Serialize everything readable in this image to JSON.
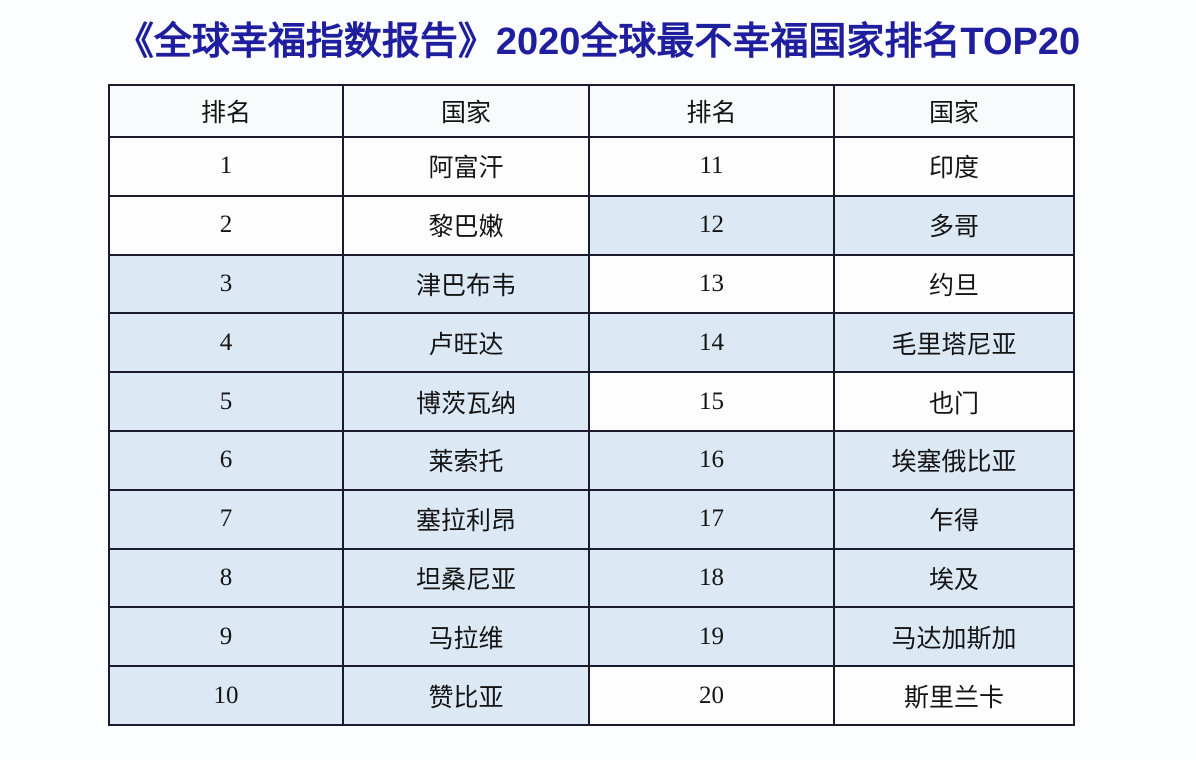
{
  "title": "《全球幸福指数报告》2020全球最不幸福国家排名TOP20",
  "colors": {
    "title_color": "#1e1e9e",
    "border_color": "#1b1b30",
    "shade_color": "#dce8f4",
    "header_bg": "#f8fafc",
    "row_bg": "#fdfdfe",
    "text_color": "#141414"
  },
  "table": {
    "headers": [
      "排名",
      "国家",
      "排名",
      "国家"
    ],
    "rows": [
      {
        "rank_left": "1",
        "country_left": "阿富汗",
        "left_shaded": false,
        "rank_right": "11",
        "country_right": "印度",
        "right_shaded": false
      },
      {
        "rank_left": "2",
        "country_left": "黎巴嫩",
        "left_shaded": false,
        "rank_right": "12",
        "country_right": "多哥",
        "right_shaded": true
      },
      {
        "rank_left": "3",
        "country_left": "津巴布韦",
        "left_shaded": true,
        "rank_right": "13",
        "country_right": "约旦",
        "right_shaded": false
      },
      {
        "rank_left": "4",
        "country_left": "卢旺达",
        "left_shaded": true,
        "rank_right": "14",
        "country_right": "毛里塔尼亚",
        "right_shaded": true
      },
      {
        "rank_left": "5",
        "country_left": "博茨瓦纳",
        "left_shaded": true,
        "rank_right": "15",
        "country_right": "也门",
        "right_shaded": false
      },
      {
        "rank_left": "6",
        "country_left": "莱索托",
        "left_shaded": true,
        "rank_right": "16",
        "country_right": "埃塞俄比亚",
        "right_shaded": true
      },
      {
        "rank_left": "7",
        "country_left": "塞拉利昂",
        "left_shaded": true,
        "rank_right": "17",
        "country_right": "乍得",
        "right_shaded": true
      },
      {
        "rank_left": "8",
        "country_left": "坦桑尼亚",
        "left_shaded": true,
        "rank_right": "18",
        "country_right": "埃及",
        "right_shaded": true
      },
      {
        "rank_left": "9",
        "country_left": "马拉维",
        "left_shaded": true,
        "rank_right": "19",
        "country_right": "马达加斯加",
        "right_shaded": true
      },
      {
        "rank_left": "10",
        "country_left": "赞比亚",
        "left_shaded": true,
        "rank_right": "20",
        "country_right": "斯里兰卡",
        "right_shaded": false
      }
    ]
  }
}
